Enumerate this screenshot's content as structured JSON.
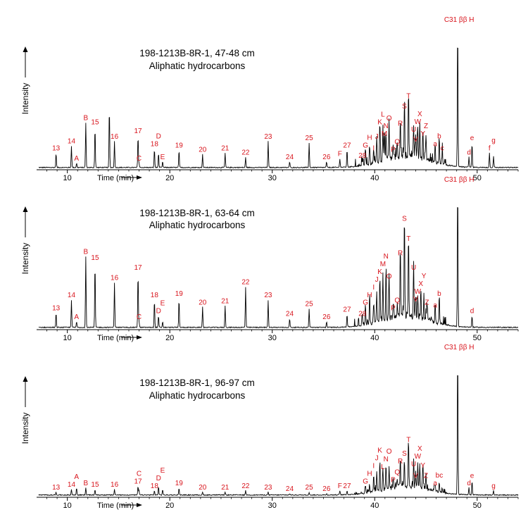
{
  "chart_data": [
    {
      "type": "line",
      "title": "198-1213B-8R-1, 47-48 cm",
      "subtitle": "Aliphatic hydrocarbons",
      "xlabel": "Time (min)",
      "ylabel": "Intensity",
      "xlim": [
        7,
        54
      ],
      "x_ticks": [
        10,
        20,
        30,
        40,
        50
      ],
      "peaks": [
        {
          "label": "13",
          "x": 8.9,
          "h": 0.1
        },
        {
          "label": "14",
          "x": 10.4,
          "h": 0.15
        },
        {
          "label": "A",
          "x": 10.9,
          "h": 0.03
        },
        {
          "label": "B",
          "x": 11.8,
          "h": 0.31
        },
        {
          "label": "15",
          "x": 12.7,
          "h": 0.28
        },
        {
          "label": "",
          "x": 14.1,
          "h": 0.42
        },
        {
          "label": "16",
          "x": 14.6,
          "h": 0.18
        },
        {
          "label": "17",
          "x": 16.9,
          "h": 0.22
        },
        {
          "label": "C",
          "x": 17.0,
          "h": 0.03
        },
        {
          "label": "18",
          "x": 18.5,
          "h": 0.13
        },
        {
          "label": "D",
          "x": 18.9,
          "h": 0.1
        },
        {
          "label": "E",
          "x": 19.3,
          "h": 0.04
        },
        {
          "label": "19",
          "x": 20.9,
          "h": 0.12
        },
        {
          "label": "20",
          "x": 23.2,
          "h": 0.09
        },
        {
          "label": "21",
          "x": 25.4,
          "h": 0.1
        },
        {
          "label": "22",
          "x": 27.4,
          "h": 0.07
        },
        {
          "label": "23",
          "x": 29.6,
          "h": 0.18
        },
        {
          "label": "24",
          "x": 31.7,
          "h": 0.04
        },
        {
          "label": "25",
          "x": 33.6,
          "h": 0.17
        },
        {
          "label": "26",
          "x": 35.3,
          "h": 0.04
        },
        {
          "label": "F",
          "x": 36.6,
          "h": 0.06
        },
        {
          "label": "27",
          "x": 37.3,
          "h": 0.12
        },
        {
          "label": "28",
          "x": 38.8,
          "h": 0.05
        },
        {
          "label": "G",
          "x": 39.1,
          "h": 0.12
        },
        {
          "label": "H",
          "x": 39.5,
          "h": 0.14
        },
        {
          "label": "I",
          "x": 39.9,
          "h": 0.1
        },
        {
          "label": "J",
          "x": 40.2,
          "h": 0.18
        },
        {
          "label": "K",
          "x": 40.5,
          "h": 0.28
        },
        {
          "label": "L",
          "x": 40.8,
          "h": 0.24
        },
        {
          "label": "M",
          "x": 40.95,
          "h": 0.2
        },
        {
          "label": "N",
          "x": 41.1,
          "h": 0.19
        },
        {
          "label": "O",
          "x": 41.4,
          "h": 0.26
        },
        {
          "label": "P",
          "x": 41.8,
          "h": 0.09
        },
        {
          "label": "Q",
          "x": 42.2,
          "h": 0.1
        },
        {
          "label": "R",
          "x": 42.5,
          "h": 0.27
        },
        {
          "label": "S",
          "x": 42.9,
          "h": 0.39
        },
        {
          "label": "T",
          "x": 43.3,
          "h": 0.46
        },
        {
          "label": "U",
          "x": 43.8,
          "h": 0.23
        },
        {
          "label": "V",
          "x": 44.0,
          "h": 0.16
        },
        {
          "label": "W",
          "x": 44.2,
          "h": 0.22
        },
        {
          "label": "X",
          "x": 44.4,
          "h": 0.25
        },
        {
          "label": "Y",
          "x": 44.7,
          "h": 0.2
        },
        {
          "label": "Z",
          "x": 45.0,
          "h": 0.16
        },
        {
          "label": "a",
          "x": 45.9,
          "h": 0.13
        },
        {
          "label": "b",
          "x": 46.3,
          "h": 0.14
        },
        {
          "label": "c",
          "x": 46.6,
          "h": 0.1
        },
        {
          "label": "C31 ββ H",
          "x": 48.1,
          "h": 1.0
        },
        {
          "label": "d",
          "x": 49.2,
          "h": 0.07
        },
        {
          "label": "e",
          "x": 49.5,
          "h": 0.17
        },
        {
          "label": "f",
          "x": 51.2,
          "h": 0.1
        },
        {
          "label": "g",
          "x": 51.6,
          "h": 0.08
        }
      ]
    },
    {
      "type": "line",
      "title": "198-1213B-8R-1, 63-64 cm",
      "subtitle": "Aliphatic hydrocarbons",
      "xlabel": "Time (min)",
      "ylabel": "Intensity",
      "xlim": [
        7,
        54
      ],
      "x_ticks": [
        10,
        20,
        30,
        40,
        50
      ],
      "peaks": [
        {
          "label": "13",
          "x": 8.9,
          "h": 0.1
        },
        {
          "label": "14",
          "x": 10.4,
          "h": 0.19
        },
        {
          "label": "A",
          "x": 10.9,
          "h": 0.04
        },
        {
          "label": "B",
          "x": 11.8,
          "h": 0.49
        },
        {
          "label": "15",
          "x": 12.7,
          "h": 0.45
        },
        {
          "label": "16",
          "x": 14.6,
          "h": 0.31
        },
        {
          "label": "17",
          "x": 16.9,
          "h": 0.38
        },
        {
          "label": "C",
          "x": 17.0,
          "h": 0.04
        },
        {
          "label": "18",
          "x": 18.5,
          "h": 0.19
        },
        {
          "label": "D",
          "x": 18.9,
          "h": 0.08
        },
        {
          "label": "E",
          "x": 19.3,
          "h": 0.04
        },
        {
          "label": "19",
          "x": 20.9,
          "h": 0.2
        },
        {
          "label": "20",
          "x": 23.2,
          "h": 0.14
        },
        {
          "label": "21",
          "x": 25.4,
          "h": 0.15
        },
        {
          "label": "22",
          "x": 27.4,
          "h": 0.28
        },
        {
          "label": "23",
          "x": 29.6,
          "h": 0.19
        },
        {
          "label": "24",
          "x": 31.7,
          "h": 0.06
        },
        {
          "label": "25",
          "x": 33.6,
          "h": 0.13
        },
        {
          "label": "26",
          "x": 35.3,
          "h": 0.04
        },
        {
          "label": "27",
          "x": 37.3,
          "h": 0.09
        },
        {
          "label": "28",
          "x": 38.8,
          "h": 0.06
        },
        {
          "label": "G",
          "x": 39.1,
          "h": 0.14
        },
        {
          "label": "H",
          "x": 39.5,
          "h": 0.19
        },
        {
          "label": "I",
          "x": 39.9,
          "h": 0.15
        },
        {
          "label": "J",
          "x": 40.2,
          "h": 0.22
        },
        {
          "label": "K",
          "x": 40.5,
          "h": 0.31
        },
        {
          "label": "M",
          "x": 40.8,
          "h": 0.32
        },
        {
          "label": "N",
          "x": 41.1,
          "h": 0.36
        },
        {
          "label": "O",
          "x": 41.4,
          "h": 0.32
        },
        {
          "label": "P",
          "x": 41.8,
          "h": 0.1
        },
        {
          "label": "Q",
          "x": 42.2,
          "h": 0.08
        },
        {
          "label": "R",
          "x": 42.5,
          "h": 0.48
        },
        {
          "label": "S",
          "x": 42.9,
          "h": 0.72
        },
        {
          "label": "T",
          "x": 43.3,
          "h": 0.58
        },
        {
          "label": "U",
          "x": 43.8,
          "h": 0.38
        },
        {
          "label": "V",
          "x": 44.0,
          "h": 0.16
        },
        {
          "label": "W",
          "x": 44.2,
          "h": 0.17
        },
        {
          "label": "X",
          "x": 44.5,
          "h": 0.2
        },
        {
          "label": "Y",
          "x": 44.8,
          "h": 0.18
        },
        {
          "label": "Z",
          "x": 45.1,
          "h": 0.14
        },
        {
          "label": "a",
          "x": 45.9,
          "h": 0.12
        },
        {
          "label": "b",
          "x": 46.3,
          "h": 0.2
        },
        {
          "label": "C31 ββ H",
          "x": 48.1,
          "h": 1.0
        },
        {
          "label": "d",
          "x": 49.5,
          "h": 0.08
        }
      ]
    },
    {
      "type": "line",
      "title": "198-1213B-8R-1, 96-97 cm",
      "subtitle": "Aliphatic hydrocarbons",
      "xlabel": "Time (min)",
      "ylabel": "Intensity",
      "xlim": [
        7,
        54
      ],
      "x_ticks": [
        10,
        20,
        30,
        40,
        50
      ],
      "peaks": [
        {
          "label": "13",
          "x": 8.9,
          "h": 0.02
        },
        {
          "label": "14",
          "x": 10.4,
          "h": 0.04
        },
        {
          "label": "A",
          "x": 10.9,
          "h": 0.05
        },
        {
          "label": "B",
          "x": 11.8,
          "h": 0.05
        },
        {
          "label": "15",
          "x": 12.7,
          "h": 0.04
        },
        {
          "label": "16",
          "x": 14.6,
          "h": 0.04
        },
        {
          "label": "17",
          "x": 16.9,
          "h": 0.06
        },
        {
          "label": "C",
          "x": 17.0,
          "h": 0.03
        },
        {
          "label": "18",
          "x": 18.5,
          "h": 0.03
        },
        {
          "label": "D",
          "x": 18.9,
          "h": 0.06
        },
        {
          "label": "E",
          "x": 19.3,
          "h": 0.04
        },
        {
          "label": "19",
          "x": 20.9,
          "h": 0.05
        },
        {
          "label": "20",
          "x": 23.2,
          "h": 0.02
        },
        {
          "label": "21",
          "x": 25.4,
          "h": 0.02
        },
        {
          "label": "22",
          "x": 27.4,
          "h": 0.03
        },
        {
          "label": "23",
          "x": 29.6,
          "h": 0.02
        },
        {
          "label": "24",
          "x": 31.7,
          "h": 0.01
        },
        {
          "label": "25",
          "x": 33.6,
          "h": 0.02
        },
        {
          "label": "26",
          "x": 35.3,
          "h": 0.01
        },
        {
          "label": "F",
          "x": 36.6,
          "h": 0.03
        },
        {
          "label": "27",
          "x": 37.3,
          "h": 0.03
        },
        {
          "label": "G",
          "x": 39.1,
          "h": 0.06
        },
        {
          "label": "H",
          "x": 39.5,
          "h": 0.05
        },
        {
          "label": "I",
          "x": 39.9,
          "h": 0.12
        },
        {
          "label": "J",
          "x": 40.2,
          "h": 0.14
        },
        {
          "label": "K",
          "x": 40.5,
          "h": 0.2
        },
        {
          "label": "L",
          "x": 40.8,
          "h": 0.16
        },
        {
          "label": "N",
          "x": 41.1,
          "h": 0.18
        },
        {
          "label": "O",
          "x": 41.4,
          "h": 0.12
        },
        {
          "label": "P",
          "x": 41.8,
          "h": 0.07
        },
        {
          "label": "Q",
          "x": 42.2,
          "h": 0.06
        },
        {
          "label": "R",
          "x": 42.5,
          "h": 0.2
        },
        {
          "label": "S",
          "x": 42.9,
          "h": 0.19
        },
        {
          "label": "T",
          "x": 43.3,
          "h": 0.35
        },
        {
          "label": "U",
          "x": 43.8,
          "h": 0.18
        },
        {
          "label": "V",
          "x": 44.0,
          "h": 0.1
        },
        {
          "label": "W",
          "x": 44.2,
          "h": 0.15
        },
        {
          "label": "X",
          "x": 44.4,
          "h": 0.18
        },
        {
          "label": "Y",
          "x": 44.7,
          "h": 0.17
        },
        {
          "label": "Z",
          "x": 45.0,
          "h": 0.1
        },
        {
          "label": "a",
          "x": 45.9,
          "h": 0.05
        },
        {
          "label": "bc",
          "x": 46.3,
          "h": 0.07
        },
        {
          "label": "C31 ββ H",
          "x": 48.1,
          "h": 1.0
        },
        {
          "label": "d",
          "x": 49.2,
          "h": 0.05
        },
        {
          "label": "e",
          "x": 49.5,
          "h": 0.1
        },
        {
          "label": "g",
          "x": 51.6,
          "h": 0.03
        }
      ]
    }
  ]
}
